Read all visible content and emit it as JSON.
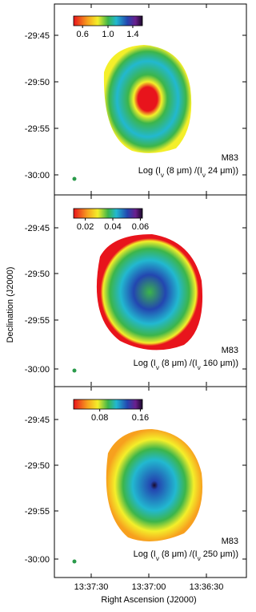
{
  "panels": [
    {
      "yticks": [
        "-29:45",
        "-29:50",
        "-29:55",
        "-30:00"
      ],
      "colorbar_ticks": [
        "0.6",
        "1.0",
        "1.4"
      ],
      "object": "M83",
      "ratio_label": {
        "prefix": "Log (I",
        "sub1": "ν",
        "mid": " (8 μm) /(I",
        "sub2": "ν",
        "suffix": " 24 μm))"
      }
    },
    {
      "yticks": [
        "-29:45",
        "-29:50",
        "-29:55",
        "-30:00"
      ],
      "colorbar_ticks": [
        "0.02",
        "0.04",
        "0.06"
      ],
      "object": "M83",
      "ratio_label": {
        "prefix": "Log (I",
        "sub1": "ν",
        "mid": " (8 μm) /(I",
        "sub2": "ν",
        "suffix": " 160 μm))"
      }
    },
    {
      "yticks": [
        "-29:45",
        "-29:50",
        "-29:55",
        "-30:00"
      ],
      "colorbar_ticks": [
        "0.08",
        "0.16"
      ],
      "object": "M83",
      "ratio_label": {
        "prefix": "Log (I",
        "sub1": "ν",
        "mid": " (8 μm) /(I",
        "sub2": "ν",
        "suffix": " 250 μm))"
      }
    }
  ],
  "x_axis": {
    "ticks": [
      "13:37:30",
      "13:37:00",
      "13:36:30"
    ],
    "label": "Right Ascension (J2000)"
  },
  "y_axis": {
    "label": "Declination (J2000)"
  }
}
